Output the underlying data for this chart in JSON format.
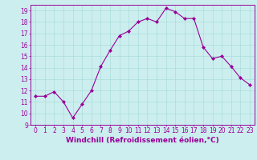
{
  "x": [
    0,
    1,
    2,
    3,
    4,
    5,
    6,
    7,
    8,
    9,
    10,
    11,
    12,
    13,
    14,
    15,
    16,
    17,
    18,
    19,
    20,
    21,
    22,
    23
  ],
  "y": [
    11.5,
    11.5,
    11.9,
    11.0,
    9.6,
    10.8,
    12.0,
    14.1,
    15.5,
    16.8,
    17.2,
    18.0,
    18.3,
    18.0,
    19.2,
    18.9,
    18.3,
    18.3,
    15.8,
    14.8,
    15.0,
    14.1,
    13.1,
    12.5
  ],
  "line_color": "#990099",
  "marker": "D",
  "marker_size": 2,
  "linewidth": 0.8,
  "xlim": [
    -0.5,
    23.5
  ],
  "ylim": [
    9,
    19.5
  ],
  "yticks": [
    9,
    10,
    11,
    12,
    13,
    14,
    15,
    16,
    17,
    18,
    19
  ],
  "xticks": [
    0,
    1,
    2,
    3,
    4,
    5,
    6,
    7,
    8,
    9,
    10,
    11,
    12,
    13,
    14,
    15,
    16,
    17,
    18,
    19,
    20,
    21,
    22,
    23
  ],
  "xlabel": "Windchill (Refroidissement éolien,°C)",
  "xlabel_fontsize": 6.5,
  "tick_fontsize": 5.5,
  "grid_color": "#aadddd",
  "bg_color": "#cceeee",
  "spine_color": "#990099",
  "tick_color": "#990099",
  "label_color": "#990099"
}
